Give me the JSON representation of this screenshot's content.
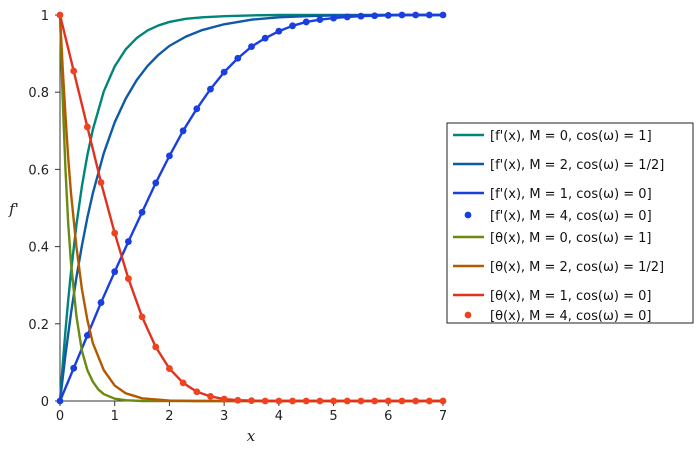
{
  "chart_data": {
    "type": "line",
    "xlabel": "x",
    "ylabel": "f'",
    "xlim": [
      0,
      7
    ],
    "ylim": [
      0,
      1
    ],
    "x_ticks": [
      "0",
      "1",
      "2",
      "3",
      "4",
      "5",
      "6",
      "7"
    ],
    "y_ticks": [
      "0",
      "0.2",
      "0.4",
      "0.6",
      "0.8",
      "1"
    ],
    "grid": false,
    "legend_position": "right",
    "series": [
      {
        "name": "[f'(x), M = 0, cos(ω) = 1]",
        "color": "#00857a",
        "style": "line",
        "x": [
          0,
          0.05,
          0.1,
          0.15,
          0.2,
          0.3,
          0.4,
          0.5,
          0.6,
          0.8,
          1,
          1.2,
          1.4,
          1.6,
          1.8,
          2,
          2.3,
          2.6,
          3,
          3.5,
          4,
          5,
          6,
          7
        ],
        "y": [
          0,
          0.095,
          0.182,
          0.261,
          0.333,
          0.456,
          0.556,
          0.637,
          0.703,
          0.802,
          0.867,
          0.911,
          0.94,
          0.96,
          0.973,
          0.982,
          0.99,
          0.994,
          0.997,
          0.999,
          1,
          1,
          1,
          1
        ]
      },
      {
        "name": "[f'(x), M = 2, cos(ω) = 1/2]",
        "color": "#0f5aa6",
        "style": "line",
        "x": [
          0,
          0.1,
          0.2,
          0.3,
          0.4,
          0.5,
          0.6,
          0.8,
          1,
          1.2,
          1.4,
          1.6,
          1.8,
          2,
          2.3,
          2.6,
          3,
          3.5,
          4,
          4.5,
          5,
          6,
          7
        ],
        "y": [
          0,
          0.12,
          0.226,
          0.32,
          0.402,
          0.475,
          0.538,
          0.642,
          0.722,
          0.783,
          0.831,
          0.868,
          0.897,
          0.92,
          0.944,
          0.961,
          0.976,
          0.988,
          0.994,
          0.997,
          0.999,
          1,
          1
        ]
      },
      {
        "name": "[f'(x), M = 1, cos(ω) = 0]",
        "color": "#1a3fe0",
        "style": "line",
        "x": [
          0,
          0.25,
          0.5,
          0.75,
          1,
          1.25,
          1.5,
          1.75,
          2,
          2.25,
          2.5,
          2.75,
          3,
          3.25,
          3.5,
          3.75,
          4,
          4.25,
          4.5,
          4.75,
          5,
          5.25,
          5.5,
          5.75,
          6,
          6.25,
          6.5,
          6.75,
          7
        ],
        "y": [
          0,
          0.085,
          0.17,
          0.255,
          0.335,
          0.413,
          0.489,
          0.565,
          0.635,
          0.7,
          0.757,
          0.808,
          0.852,
          0.888,
          0.918,
          0.94,
          0.958,
          0.972,
          0.982,
          0.988,
          0.992,
          0.995,
          0.997,
          0.998,
          0.999,
          1,
          1,
          1,
          1
        ]
      },
      {
        "name": "[f'(x), M = 4, cos(ω) = 0]",
        "color": "#1a3fe0",
        "style": "points",
        "x": [
          0,
          0.25,
          0.5,
          0.75,
          1,
          1.25,
          1.5,
          1.75,
          2,
          2.25,
          2.5,
          2.75,
          3,
          3.25,
          3.5,
          3.75,
          4,
          4.25,
          4.5,
          4.75,
          5,
          5.25,
          5.5,
          5.75,
          6,
          6.25,
          6.5,
          6.75,
          7
        ],
        "y": [
          0,
          0.085,
          0.17,
          0.255,
          0.335,
          0.413,
          0.489,
          0.565,
          0.635,
          0.7,
          0.757,
          0.808,
          0.852,
          0.888,
          0.918,
          0.94,
          0.958,
          0.972,
          0.982,
          0.988,
          0.992,
          0.995,
          0.997,
          0.998,
          0.999,
          1,
          1,
          1,
          1
        ]
      },
      {
        "name": "[θ(x), M = 0, cos(ω) = 1]",
        "color": "#6b8a10",
        "style": "line",
        "x": [
          0,
          0.05,
          0.1,
          0.15,
          0.2,
          0.3,
          0.4,
          0.5,
          0.6,
          0.7,
          0.8,
          1,
          1.2,
          1.5,
          2,
          3,
          7
        ],
        "y": [
          1,
          0.78,
          0.6,
          0.46,
          0.36,
          0.22,
          0.13,
          0.08,
          0.05,
          0.03,
          0.018,
          0.006,
          0.002,
          0,
          0,
          0,
          0
        ]
      },
      {
        "name": "[θ(x), M = 2, cos(ω) = 1/2]",
        "color": "#b35a00",
        "style": "line",
        "x": [
          0,
          0.05,
          0.1,
          0.15,
          0.2,
          0.3,
          0.4,
          0.5,
          0.6,
          0.8,
          1,
          1.2,
          1.5,
          2,
          2.5,
          3,
          7
        ],
        "y": [
          1,
          0.86,
          0.74,
          0.63,
          0.54,
          0.4,
          0.29,
          0.21,
          0.15,
          0.08,
          0.04,
          0.02,
          0.007,
          0.001,
          0,
          0,
          0
        ]
      },
      {
        "name": "[θ(x), M = 1, cos(ω) = 0]",
        "color": "#e0321e",
        "style": "line",
        "x": [
          0,
          0.25,
          0.5,
          0.75,
          1,
          1.25,
          1.5,
          1.75,
          2,
          2.25,
          2.5,
          2.75,
          3,
          3.25,
          3.5,
          3.75,
          4,
          4.5,
          5,
          5.5,
          6,
          6.5,
          7
        ],
        "y": [
          1,
          0.855,
          0.71,
          0.566,
          0.435,
          0.317,
          0.218,
          0.14,
          0.084,
          0.047,
          0.024,
          0.012,
          0.005,
          0.002,
          0.001,
          0,
          0,
          0,
          0,
          0,
          0,
          0,
          0
        ]
      },
      {
        "name": "[θ(x), M = 4, cos(ω) = 0]",
        "color": "#f0421e",
        "style": "points",
        "x": [
          0,
          0.25,
          0.5,
          0.75,
          1,
          1.25,
          1.5,
          1.75,
          2,
          2.25,
          2.5,
          2.75,
          3,
          3.25,
          3.5,
          3.75,
          4,
          4.25,
          4.5,
          4.75,
          5,
          5.25,
          5.5,
          5.75,
          6,
          6.25,
          6.5,
          6.75,
          7
        ],
        "y": [
          1,
          0.855,
          0.71,
          0.566,
          0.435,
          0.317,
          0.218,
          0.14,
          0.084,
          0.047,
          0.024,
          0.012,
          0.005,
          0.002,
          0.001,
          0,
          0,
          0,
          0,
          0,
          0,
          0,
          0,
          0,
          0,
          0,
          0,
          0,
          0
        ]
      }
    ]
  }
}
